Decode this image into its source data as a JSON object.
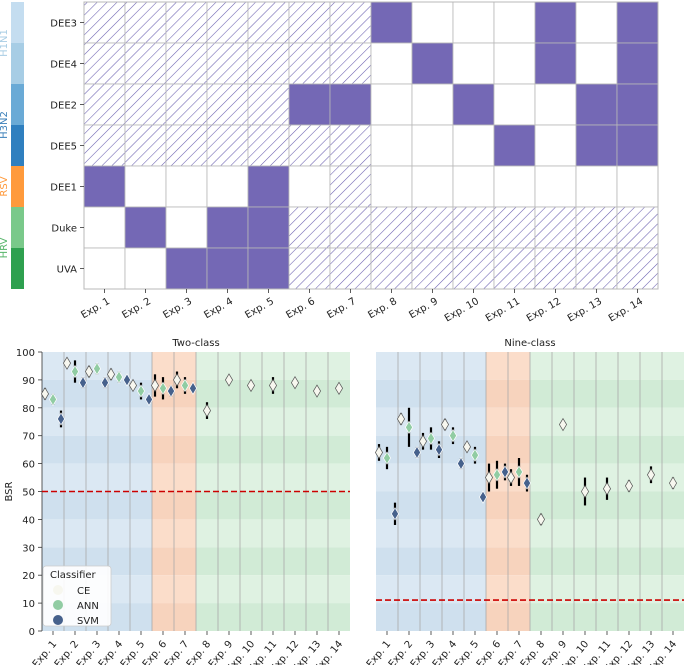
{
  "colors": {
    "purple": "#7468b5",
    "hatch": "#6a5fb0",
    "grid": "#b8b8b8",
    "ce": "#f7f7ef",
    "ann": "#91cca3",
    "svm": "#46618c",
    "errbar": "#000000",
    "chance": "#cc0000",
    "bg_flu": "#dbe8f3",
    "bg_flu_alt": "#cfe0ee",
    "bg_rsv": "#fbddca",
    "bg_rsv_alt": "#f7d3bd",
    "bg_hrv": "#dff2e2",
    "bg_hrv_alt": "#d1ebd6",
    "h1n1": "#c4ddf0",
    "h1n1_2": "#a7cde5",
    "h3n2": "#6aaad6",
    "h3n2_2": "#2f7fbf",
    "rsv": "#ff9a3c",
    "hrv": "#7ac98a",
    "hrv_2": "#2ea04f",
    "h1n1_text": "#a8cde4",
    "h3n2_text": "#3a7fb9",
    "rsv_text": "#ff9a3c",
    "hrv_text": "#56b56a"
  },
  "chart_data": [
    {
      "type": "heatmap",
      "rows": [
        "DEE3",
        "DEE4",
        "DEE2",
        "DEE5",
        "DEE1",
        "Duke",
        "UVA"
      ],
      "columns": [
        "Exp. 1",
        "Exp. 2",
        "Exp. 3",
        "Exp. 4",
        "Exp. 5",
        "Exp. 6",
        "Exp. 7",
        "Exp. 8",
        "Exp. 9",
        "Exp. 10",
        "Exp. 11",
        "Exp. 12",
        "Exp. 13",
        "Exp. 14"
      ],
      "cell_legend": {
        "2": "solid",
        "1": "hatched",
        "0": "empty"
      },
      "cells": [
        [
          1,
          1,
          1,
          1,
          1,
          1,
          1,
          2,
          0,
          0,
          0,
          2,
          0,
          2
        ],
        [
          1,
          1,
          1,
          1,
          1,
          1,
          1,
          0,
          2,
          0,
          0,
          2,
          0,
          2
        ],
        [
          1,
          1,
          1,
          1,
          1,
          2,
          2,
          0,
          0,
          2,
          0,
          0,
          2,
          2
        ],
        [
          1,
          1,
          1,
          1,
          1,
          1,
          1,
          0,
          0,
          0,
          2,
          0,
          2,
          2
        ],
        [
          2,
          0,
          0,
          0,
          2,
          0,
          1,
          0,
          0,
          0,
          0,
          0,
          0,
          0
        ],
        [
          0,
          2,
          0,
          2,
          2,
          1,
          1,
          1,
          1,
          1,
          1,
          1,
          1,
          1
        ],
        [
          0,
          0,
          2,
          2,
          2,
          1,
          1,
          1,
          1,
          1,
          1,
          1,
          1,
          1
        ]
      ],
      "virus_groups": [
        {
          "label": "H1N1",
          "rows": [
            0,
            1
          ]
        },
        {
          "label": "H3N2",
          "rows": [
            2,
            3
          ]
        },
        {
          "label": "RSV",
          "rows": [
            4
          ]
        },
        {
          "label": "HRV",
          "rows": [
            5,
            6
          ]
        }
      ]
    },
    {
      "type": "scatter",
      "title": "Two-class",
      "ylabel": "BSR",
      "ylim": [
        0,
        100
      ],
      "yticks": [
        0,
        10,
        20,
        30,
        40,
        50,
        60,
        70,
        80,
        90,
        100
      ],
      "categories": [
        "Exp. 1",
        "Exp. 2",
        "Exp. 3",
        "Exp. 4",
        "Exp. 5",
        "Exp. 6",
        "Exp. 7",
        "Exp. 8",
        "Exp. 9",
        "Exp. 10",
        "Exp. 11",
        "Exp. 12",
        "Exp. 13",
        "Exp. 14"
      ],
      "chance_level": 50,
      "series": [
        {
          "name": "CE",
          "values": [
            85,
            96,
            93,
            92,
            88,
            88,
            90,
            79,
            90,
            88,
            88,
            89,
            86,
            87
          ],
          "err": [
            2,
            1,
            2,
            2,
            1,
            4,
            3,
            3,
            1.5,
            0,
            3,
            0,
            0,
            0
          ]
        },
        {
          "name": "ANN",
          "values": [
            83,
            93,
            94,
            91,
            86,
            87,
            88,
            null,
            null,
            null,
            null,
            null,
            null,
            null
          ],
          "err": [
            2,
            4,
            2,
            2,
            3,
            4,
            3,
            0,
            0,
            0,
            0,
            0,
            0,
            0
          ]
        },
        {
          "name": "SVM",
          "values": [
            76,
            89,
            89,
            90,
            83,
            86,
            87,
            null,
            null,
            null,
            null,
            null,
            null,
            null
          ],
          "err": [
            3,
            2,
            2,
            1.5,
            1.5,
            2,
            1.5,
            0,
            0,
            0,
            0,
            0,
            0,
            0
          ]
        }
      ]
    },
    {
      "type": "scatter",
      "title": "Nine-class",
      "ylim": [
        0,
        100
      ],
      "categories": [
        "Exp. 1",
        "Exp. 2",
        "Exp. 3",
        "Exp. 4",
        "Exp. 5",
        "Exp. 6",
        "Exp. 7",
        "Exp. 8",
        "Exp. 9",
        "Exp. 10",
        "Exp. 11",
        "Exp. 12",
        "Exp. 13",
        "Exp. 14"
      ],
      "chance_level": 11.1,
      "series": [
        {
          "name": "CE",
          "values": [
            64,
            76,
            68,
            74,
            66,
            55,
            55,
            40,
            74,
            50,
            51,
            52,
            56,
            53
          ],
          "err": [
            3,
            2,
            3,
            2,
            1.5,
            5,
            3,
            2,
            1.5,
            5,
            4,
            2,
            3,
            2
          ]
        },
        {
          "name": "ANN",
          "values": [
            62,
            73,
            69,
            70,
            63,
            56,
            57,
            null,
            null,
            null,
            null,
            null,
            null,
            null
          ],
          "err": [
            4,
            7,
            4,
            3,
            3,
            5,
            5,
            0,
            0,
            0,
            0,
            0,
            0,
            0
          ]
        },
        {
          "name": "SVM",
          "values": [
            42,
            64,
            65,
            60,
            48,
            57,
            53,
            null,
            null,
            null,
            null,
            null,
            null,
            null
          ],
          "err": [
            4,
            2,
            3,
            2,
            1,
            3,
            3,
            0,
            0,
            0,
            0,
            0,
            0,
            0
          ]
        }
      ]
    }
  ],
  "legend": {
    "title": "Classifier",
    "items": [
      "CE",
      "ANN",
      "SVM"
    ]
  }
}
